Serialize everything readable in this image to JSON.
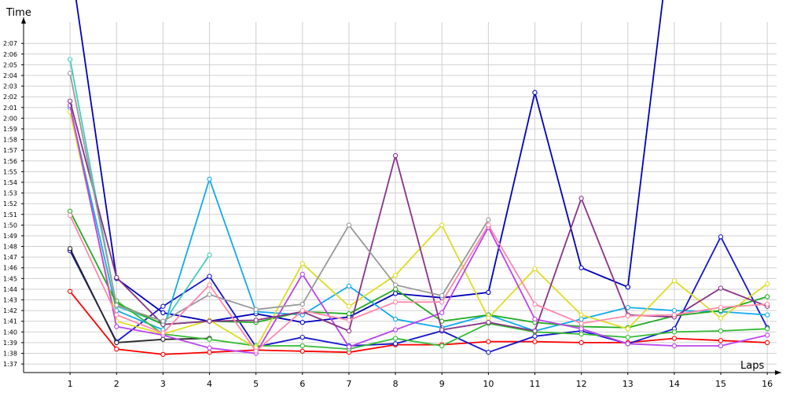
{
  "chart_data": {
    "type": "line",
    "xlabel": "Laps",
    "ylabel": "Time",
    "grid": true,
    "legend": "none",
    "x": [
      1,
      2,
      3,
      4,
      5,
      6,
      7,
      8,
      9,
      10,
      11,
      12,
      13,
      14,
      15,
      16
    ],
    "xlim": [
      0,
      16.2
    ],
    "ylim": [
      96.2,
      129.0
    ],
    "y_ticks": [
      97,
      98,
      99,
      100,
      101,
      102,
      103,
      104,
      105,
      106,
      107,
      108,
      109,
      110,
      111,
      112,
      113,
      114,
      115,
      116,
      117,
      118,
      119,
      120,
      121,
      122,
      123,
      124,
      125,
      126,
      127
    ],
    "y_tick_labels": [
      "1:37",
      "1:38",
      "1:39",
      "1:40",
      "1:41",
      "1:42",
      "1:43",
      "1:44",
      "1:45",
      "1:46",
      "1:47",
      "1:48",
      "1:49",
      "1:50",
      "1:51",
      "1:52",
      "1:53",
      "1:54",
      "1:55",
      "1:56",
      "1:57",
      "1:58",
      "1:59",
      "2:00",
      "2:01",
      "2:02",
      "2:03",
      "2:04",
      "2:05",
      "2:06",
      "2:07"
    ],
    "series": [
      {
        "color": "#ff0000",
        "values": [
          103.8,
          98.4,
          97.9,
          98.1,
          98.3,
          98.2,
          98.1,
          98.8,
          98.8,
          99.1,
          99.1,
          99.0,
          99.0,
          99.4,
          99.2,
          99.0
        ]
      },
      {
        "color": "#0000bb",
        "values": [
          135.0,
          105.0,
          101.8,
          101.0,
          101.7,
          100.9,
          101.4,
          103.6,
          103.2,
          103.7,
          122.4,
          106.0,
          104.2,
          null,
          null,
          null
        ]
      },
      {
        "color": "#0000bb",
        "values": [
          null,
          null,
          null,
          null,
          null,
          null,
          null,
          null,
          null,
          null,
          null,
          null,
          104.2,
          140.0,
          null,
          null
        ]
      },
      {
        "color": "#1515cc",
        "values": [
          107.6,
          99.1,
          102.4,
          105.2,
          98.6,
          99.5,
          98.7,
          98.9,
          100.1,
          98.1,
          99.6,
          100.1,
          98.9,
          100.3,
          108.9,
          100.4
        ]
      },
      {
        "color": "#262626",
        "values": [
          107.8,
          99.0,
          99.3,
          99.4,
          null,
          null,
          null,
          null,
          null,
          null,
          null,
          null,
          null,
          null,
          null,
          null
        ]
      },
      {
        "color": "#11aaee",
        "values": [
          121.0,
          102.0,
          100.2,
          114.3,
          101.9,
          101.6,
          104.3,
          101.2,
          100.4,
          101.6,
          100.1,
          101.2,
          102.3,
          102.0,
          101.9,
          101.6
        ]
      },
      {
        "color": "#44ccbb",
        "values": [
          125.5,
          102.4,
          100.8,
          107.2,
          null,
          null,
          null,
          null,
          null,
          null,
          null,
          null,
          null,
          null,
          null,
          null
        ]
      },
      {
        "color": "#22aa22",
        "values": [
          111.3,
          102.7,
          100.7,
          101.0,
          100.9,
          101.9,
          101.7,
          104.0,
          101.0,
          101.6,
          100.9,
          100.5,
          100.4,
          101.5,
          102.0,
          103.3
        ]
      },
      {
        "color": "#33bb33",
        "values": [
          null,
          102.9,
          99.8,
          99.3,
          98.7,
          98.7,
          98.4,
          99.4,
          98.7,
          100.8,
          100.0,
          99.8,
          99.5,
          100.0,
          100.1,
          100.3
        ]
      },
      {
        "color": "#dddd22",
        "values": [
          120.6,
          101.0,
          99.8,
          101.1,
          98.5,
          106.4,
          102.4,
          105.3,
          110.0,
          101.3,
          105.9,
          101.6,
          100.3,
          104.8,
          101.3,
          104.5
        ]
      },
      {
        "color": "#bb44ee",
        "values": [
          121.2,
          100.5,
          99.7,
          98.5,
          98.0,
          105.4,
          98.6,
          100.2,
          101.8,
          109.8,
          101.2,
          100.3,
          98.9,
          98.7,
          98.7,
          99.7
        ]
      },
      {
        "color": "#883388",
        "values": [
          121.6,
          105.1,
          100.7,
          101.0,
          101.1,
          101.9,
          100.1,
          116.5,
          100.2,
          100.9,
          100.1,
          112.5,
          101.6,
          101.4,
          104.1,
          102.4
        ]
      },
      {
        "color": "#999999",
        "values": [
          124.2,
          102.5,
          101.0,
          103.5,
          102.1,
          102.6,
          110.0,
          104.4,
          103.4,
          110.5,
          null,
          null,
          null,
          null,
          null,
          null
        ]
      },
      {
        "color": "#ff88aa",
        "values": [
          110.9,
          101.6,
          99.9,
          104.4,
          98.2,
          102.0,
          101.1,
          102.8,
          102.8,
          110.0,
          102.6,
          100.8,
          101.5,
          101.6,
          102.3,
          102.6
        ]
      }
    ]
  }
}
